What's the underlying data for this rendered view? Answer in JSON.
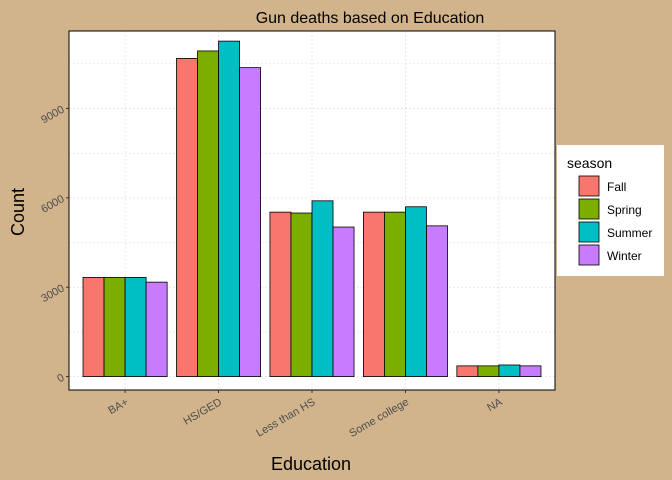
{
  "chart_data": {
    "type": "bar",
    "title": "Gun deaths based on Education",
    "xlabel": "Education",
    "ylabel": "Count",
    "categories": [
      "BA+",
      "HS/GED",
      "Less than HS",
      "Some college",
      "NA"
    ],
    "yticks": [
      0,
      3000,
      6000,
      9000
    ],
    "ytick_labels": [
      "0",
      "3000",
      "6000",
      "9000"
    ],
    "ylim": [
      -450,
      11600
    ],
    "grid": true,
    "legend": {
      "title": "season",
      "placement": "right"
    },
    "series": [
      {
        "name": "Fall",
        "color": "#F8766D",
        "values": [
          3330,
          10680,
          5520,
          5520,
          360
        ]
      },
      {
        "name": "Spring",
        "color": "#7CAE00",
        "values": [
          3330,
          10930,
          5490,
          5520,
          360
        ]
      },
      {
        "name": "Summer",
        "color": "#00BFC4",
        "values": [
          3330,
          11260,
          5900,
          5700,
          390
        ]
      },
      {
        "name": "Winter",
        "color": "#C77CFF",
        "values": [
          3170,
          10370,
          5020,
          5060,
          360
        ]
      }
    ],
    "colors": {
      "background": "#D2B48C",
      "panel": "#FFFFFF",
      "grid": "#D9D9D9",
      "bar_outline": "#000000",
      "axis_text": "#4D4D4D"
    }
  }
}
